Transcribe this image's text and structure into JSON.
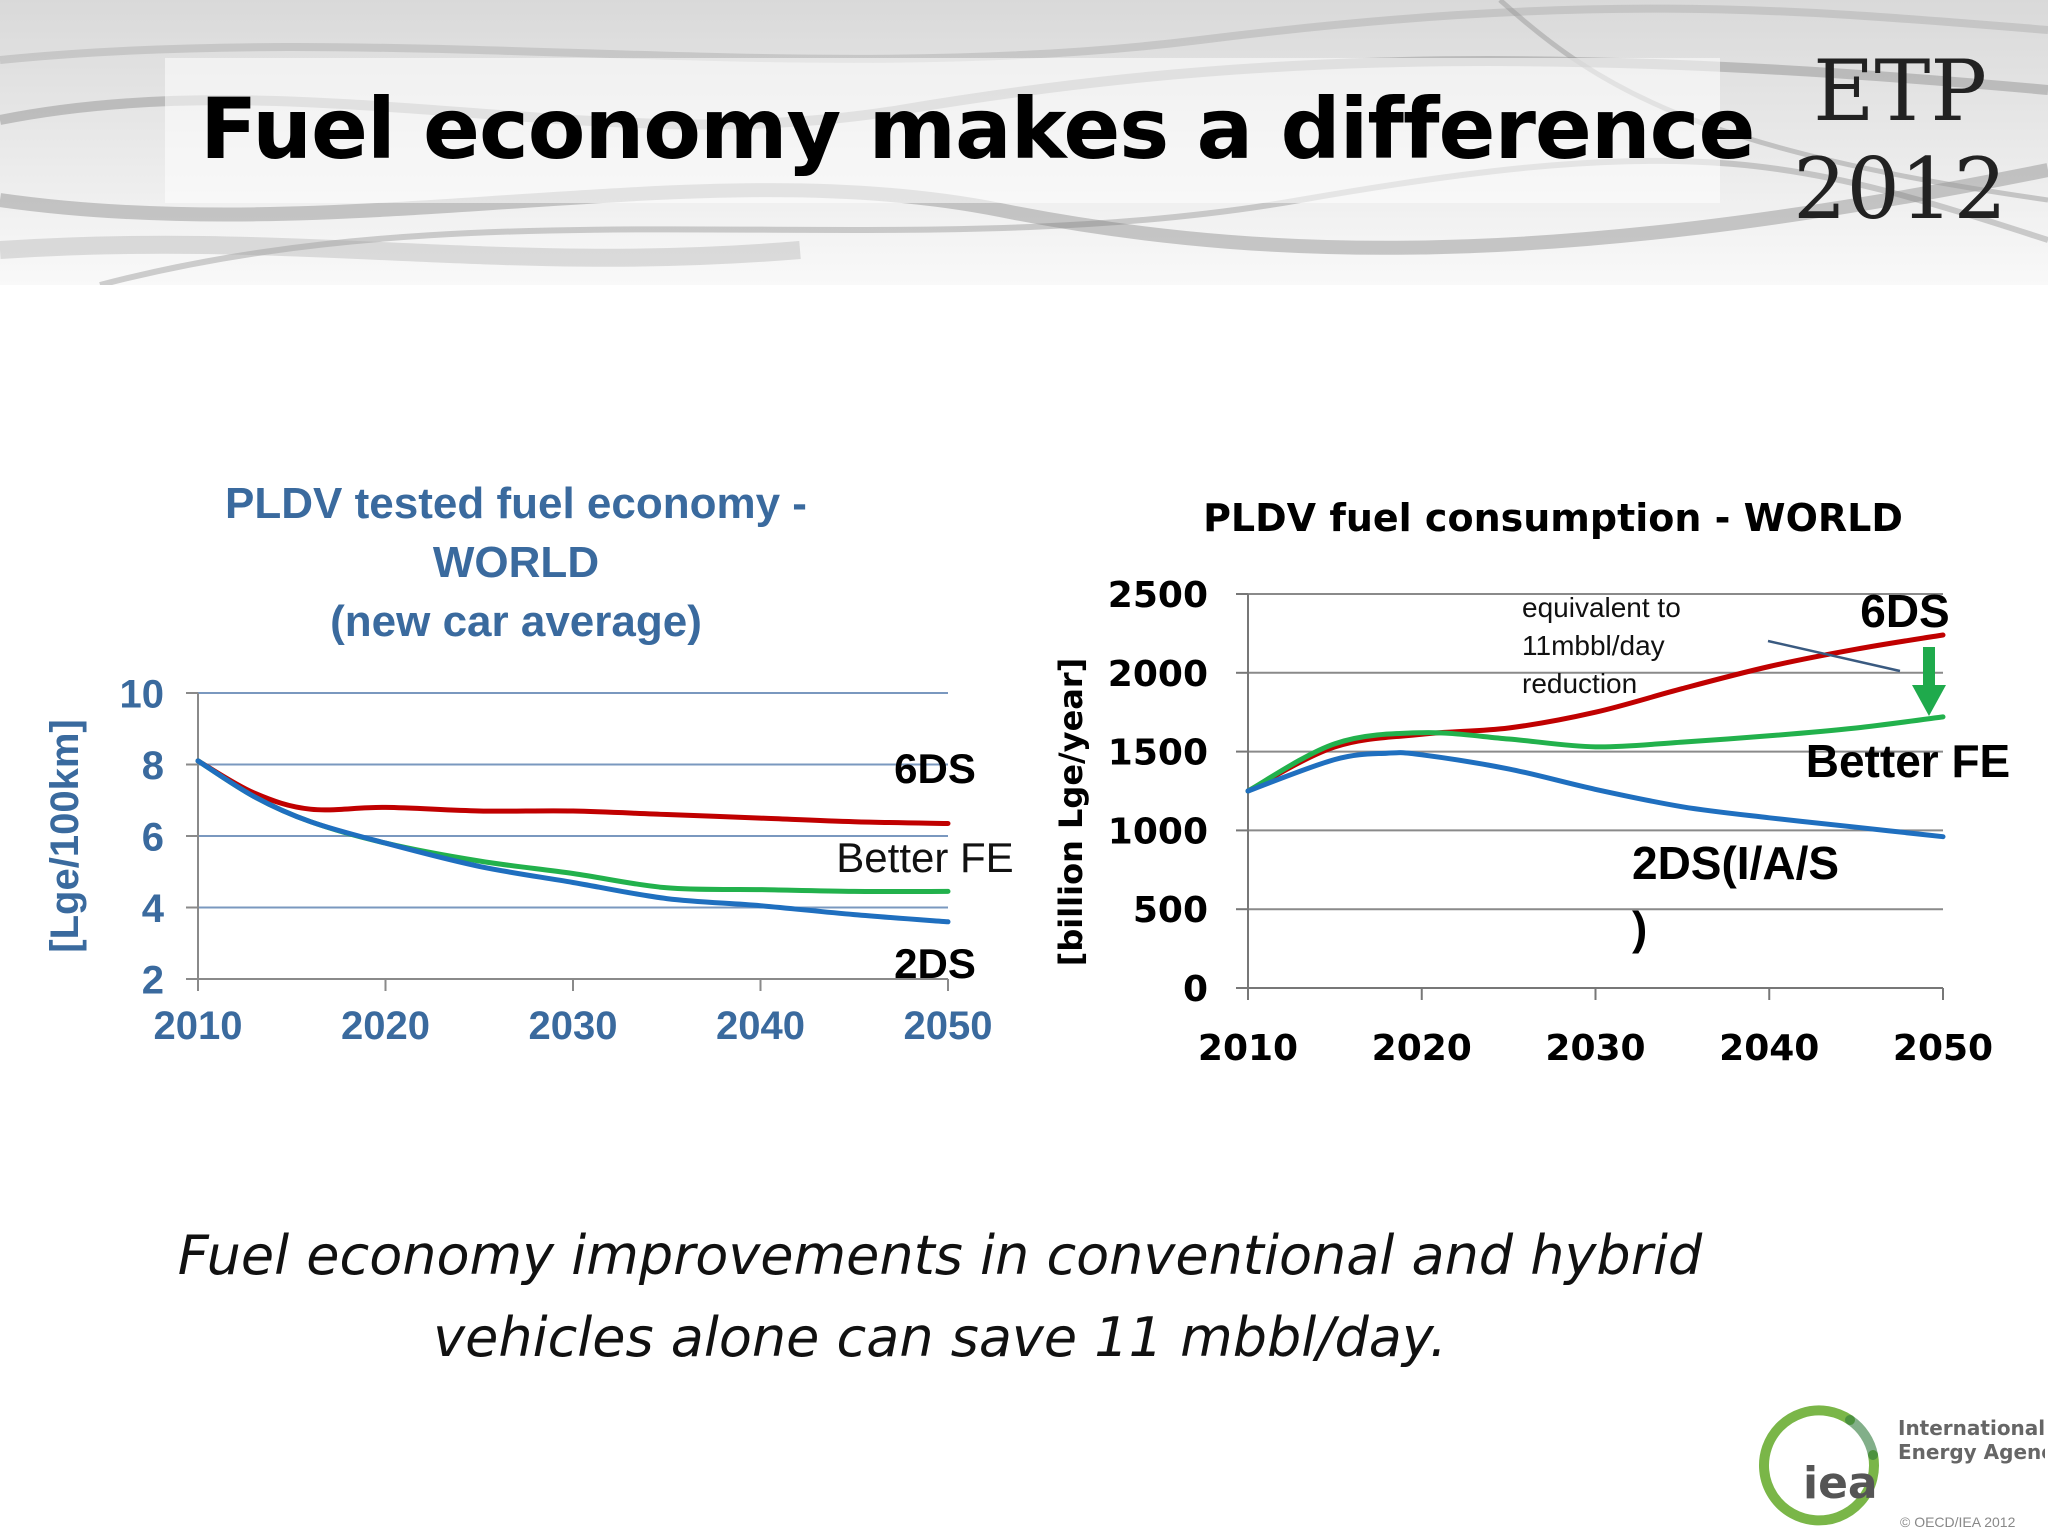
{
  "slide": {
    "title": "Fuel economy makes a difference",
    "badge_line1": "ETP",
    "badge_line2": "2012",
    "caption_line1": "Fuel economy improvements in conventional and hybrid",
    "caption_line2": "vehicles alone can save 11 mbbl/day.",
    "logo_text": "iea",
    "logo_name_line1": "International",
    "logo_name_line2": "Energy Agency",
    "copyright": "© OECD/IEA 2012"
  },
  "colors": {
    "6DS": "#c00000",
    "better_fe": "#22b14c",
    "2DS": "#1f6fbf",
    "chart1_title": "#3a6a9e",
    "arrow": "#1faa4c",
    "logo_green": "#7ab648"
  },
  "chart_data": [
    {
      "type": "line",
      "title_lines": [
        "PLDV tested fuel economy -",
        "WORLD",
        "(new car average)"
      ],
      "ylabel": "[Lge/100km]",
      "xlabel": "",
      "xlim": [
        2010,
        2050
      ],
      "ylim": [
        2,
        10
      ],
      "x_ticks": [
        2010,
        2020,
        2030,
        2040,
        2050
      ],
      "y_ticks": [
        2,
        4,
        6,
        8,
        10
      ],
      "grid": true,
      "series": [
        {
          "name": "6DS",
          "x": [
            2010,
            2013,
            2016,
            2020,
            2025,
            2030,
            2035,
            2040,
            2045,
            2050
          ],
          "values": [
            8.1,
            7.2,
            6.75,
            6.8,
            6.7,
            6.7,
            6.6,
            6.5,
            6.4,
            6.35
          ]
        },
        {
          "name": "Better FE",
          "x": [
            2010,
            2013,
            2016,
            2020,
            2025,
            2030,
            2035,
            2040,
            2045,
            2050
          ],
          "values": [
            8.1,
            7.1,
            6.4,
            5.8,
            5.3,
            4.95,
            4.55,
            4.5,
            4.45,
            4.45
          ]
        },
        {
          "name": "2DS",
          "x": [
            2010,
            2013,
            2016,
            2020,
            2025,
            2030,
            2035,
            2040,
            2045,
            2050
          ],
          "values": [
            8.1,
            7.1,
            6.4,
            5.8,
            5.15,
            4.7,
            4.25,
            4.05,
            3.8,
            3.6
          ]
        }
      ]
    },
    {
      "type": "line",
      "title": "PLDV fuel consumption - WORLD",
      "ylabel": "[billion Lge/year]",
      "xlabel": "",
      "xlim": [
        2010,
        2050
      ],
      "ylim": [
        0,
        2500
      ],
      "x_ticks": [
        2010,
        2020,
        2030,
        2040,
        2050
      ],
      "y_ticks": [
        0,
        500,
        1000,
        1500,
        2000,
        2500
      ],
      "grid": true,
      "series": [
        {
          "name": "6DS",
          "x": [
            2010,
            2015,
            2020,
            2025,
            2030,
            2035,
            2040,
            2045,
            2050
          ],
          "values": [
            1250,
            1530,
            1610,
            1650,
            1750,
            1900,
            2040,
            2150,
            2240
          ]
        },
        {
          "name": "Better FE",
          "x": [
            2010,
            2015,
            2020,
            2025,
            2030,
            2035,
            2040,
            2045,
            2050
          ],
          "values": [
            1250,
            1550,
            1620,
            1580,
            1530,
            1560,
            1600,
            1650,
            1720
          ]
        },
        {
          "name": "2DS(I/A/S)",
          "x": [
            2010,
            2015,
            2018,
            2020,
            2025,
            2030,
            2035,
            2040,
            2045,
            2050
          ],
          "values": [
            1250,
            1450,
            1490,
            1480,
            1390,
            1260,
            1150,
            1080,
            1020,
            960
          ]
        }
      ],
      "annotation": [
        "equivalent to",
        "11mbbl/day",
        "reduction"
      ]
    }
  ]
}
